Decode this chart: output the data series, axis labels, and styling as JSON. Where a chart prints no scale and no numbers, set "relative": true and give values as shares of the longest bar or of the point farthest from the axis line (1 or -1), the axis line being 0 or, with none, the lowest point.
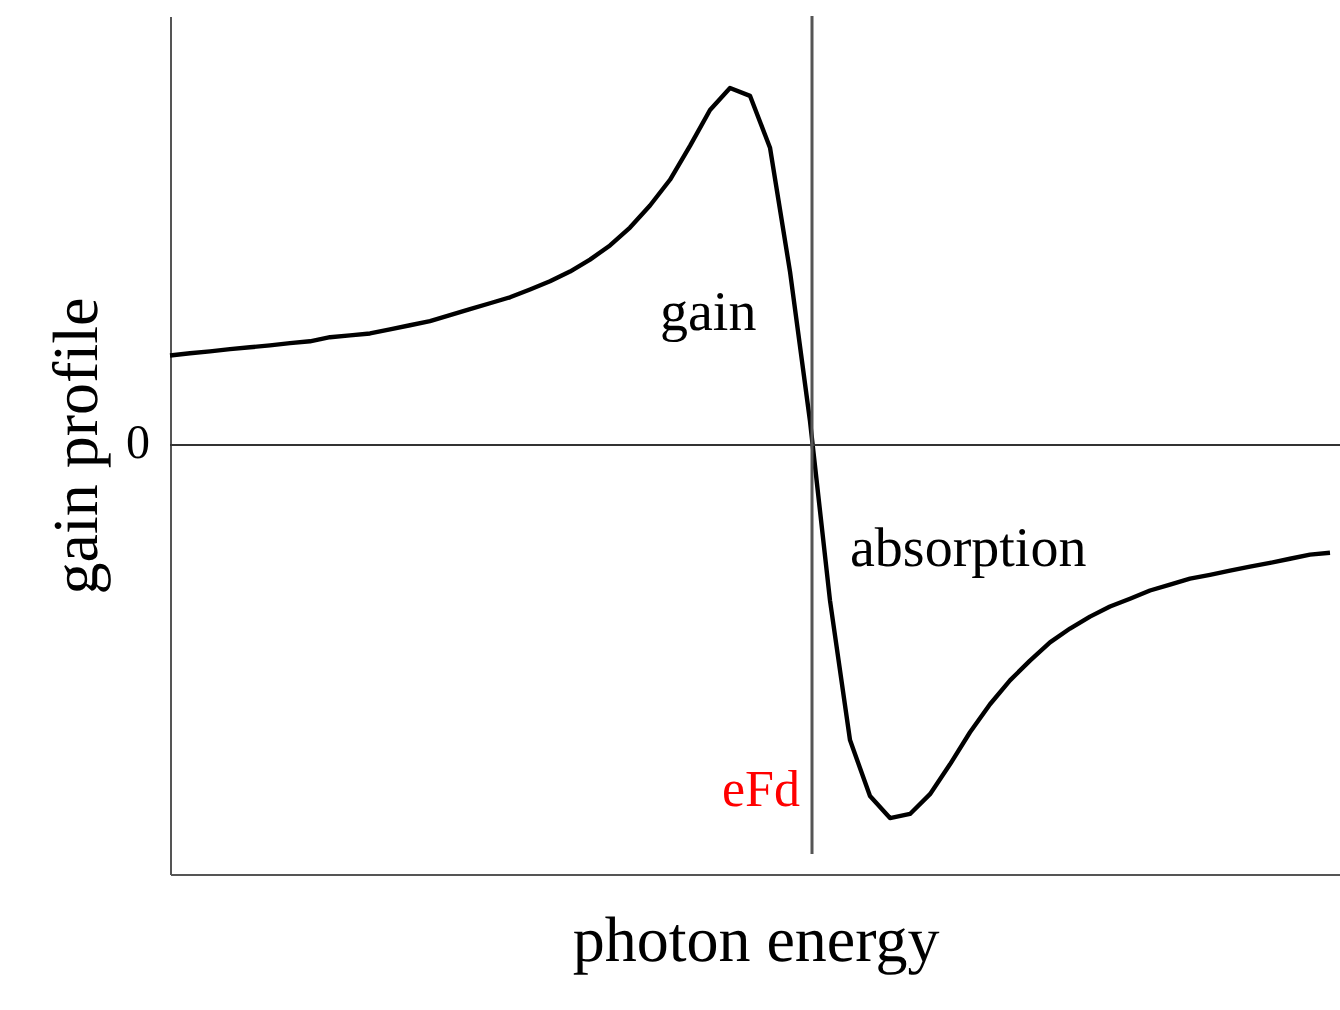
{
  "chart_data": {
    "type": "line",
    "relative": true,
    "xlabel": "photon energy",
    "ylabel": "gain profile",
    "categories": [
      null,
      null,
      null,
      null,
      null,
      null,
      null,
      null,
      null,
      null,
      null,
      null,
      null,
      null,
      null,
      null,
      null,
      null,
      null,
      null,
      null,
      null,
      null,
      null,
      null,
      null,
      null,
      null,
      null,
      null,
      null,
      null,
      null,
      null,
      null,
      null,
      null,
      null,
      null,
      null,
      null,
      null,
      null,
      null,
      null,
      null,
      null,
      null,
      null,
      null,
      null,
      null,
      null,
      null,
      null,
      null,
      null,
      null,
      null
    ],
    "series": [
      {
        "color": "#000000",
        "values": [
          0.24,
          0.246,
          0.251,
          0.257,
          0.262,
          0.267,
          0.273,
          0.278,
          0.289,
          0.294,
          0.299,
          0.31,
          0.321,
          0.332,
          0.348,
          0.364,
          0.38,
          0.396,
          0.417,
          0.439,
          0.465,
          0.497,
          0.535,
          0.583,
          0.642,
          0.711,
          0.802,
          0.898,
          0.957,
          0.936,
          0.797,
          0.465,
          0.064,
          -0.417,
          -0.791,
          -0.941,
          -1,
          -0.989,
          -0.936,
          -0.856,
          -0.77,
          -0.695,
          -0.631,
          -0.578,
          -0.529,
          -0.492,
          -0.46,
          -0.433,
          -0.412,
          -0.39,
          -0.374,
          -0.358,
          -0.348,
          -0.337,
          -0.326,
          -0.316,
          -0.305,
          -0.294,
          -0.289
        ]
      }
    ],
    "annotations": [
      "gain",
      "absorption",
      "0",
      "eFd"
    ],
    "marker": "none",
    "line_style": "solid"
  }
}
